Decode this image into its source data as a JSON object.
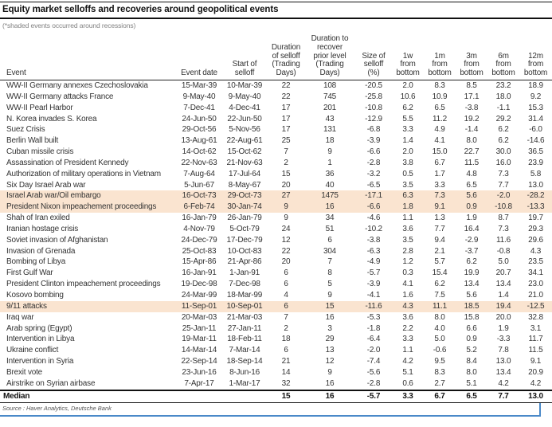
{
  "title": "Equity market selloffs and recoveries around geopolitical events",
  "subtitle": "(*shaded events occurred around recessions)",
  "source": "Source : Haver Analytics, Deutsche Bank",
  "colors": {
    "row_shade": "#fae4d0",
    "border_blue": "#4a89c8"
  },
  "chart_data": {
    "type": "table",
    "title": "Equity market selloffs and recoveries around geopolitical events",
    "note": "(*shaded events occurred around recessions)",
    "columns": [
      "Event",
      "Event date",
      "Start of selloff",
      "Duration of selloff (Trading Days)",
      "Duration to recover prior level (Trading Days)",
      "Size of selloff (%)",
      "1w from bottom",
      "1m from bottom",
      "3m from bottom",
      "6m from bottom",
      "12m from bottom"
    ],
    "header_lines": [
      "Event",
      "Event date",
      "Start of\nselloff",
      "Duration\nof selloff\n(Trading\nDays)",
      "Duration to\nrecover\nprior level\n(Trading\nDays)",
      "Size of\nselloff\n(%)",
      "1w\nfrom\nbottom",
      "1m\nfrom\nbottom",
      "3m\nfrom\nbottom",
      "6m\nfrom\nbottom",
      "12m\nfrom\nbottom"
    ],
    "rows": [
      {
        "shaded": false,
        "cells": [
          "WW-II Germany annexes Czechoslovakia",
          "15-Mar-39",
          "10-Mar-39",
          "22",
          "108",
          "-20.5",
          "2.0",
          "8.3",
          "8.5",
          "23.2",
          "18.9"
        ]
      },
      {
        "shaded": false,
        "cells": [
          "WW-II Germany attacks France",
          "9-May-40",
          "9-May-40",
          "22",
          "745",
          "-25.8",
          "10.6",
          "10.9",
          "17.1",
          "18.0",
          "9.2"
        ]
      },
      {
        "shaded": false,
        "cells": [
          "WW-II Pearl Harbor",
          "7-Dec-41",
          "4-Dec-41",
          "17",
          "201",
          "-10.8",
          "6.2",
          "6.5",
          "-3.8",
          "-1.1",
          "15.3"
        ]
      },
      {
        "shaded": false,
        "cells": [
          "N. Korea invades S. Korea",
          "24-Jun-50",
          "22-Jun-50",
          "17",
          "43",
          "-12.9",
          "5.5",
          "11.2",
          "19.2",
          "29.2",
          "31.4"
        ]
      },
      {
        "shaded": false,
        "cells": [
          "Suez Crisis",
          "29-Oct-56",
          "5-Nov-56",
          "17",
          "131",
          "-6.8",
          "3.3",
          "4.9",
          "-1.4",
          "6.2",
          "-6.0"
        ]
      },
      {
        "shaded": false,
        "cells": [
          "Berlin Wall built",
          "13-Aug-61",
          "22-Aug-61",
          "25",
          "18",
          "-3.9",
          "1.4",
          "4.1",
          "8.0",
          "6.2",
          "-14.6"
        ]
      },
      {
        "shaded": false,
        "cells": [
          "Cuban missile crisis",
          "14-Oct-62",
          "15-Oct-62",
          "7",
          "9",
          "-6.6",
          "2.0",
          "15.0",
          "22.7",
          "30.0",
          "36.5"
        ]
      },
      {
        "shaded": false,
        "cells": [
          "Assassination of President Kennedy",
          "22-Nov-63",
          "21-Nov-63",
          "2",
          "1",
          "-2.8",
          "3.8",
          "6.7",
          "11.5",
          "16.0",
          "23.9"
        ]
      },
      {
        "shaded": false,
        "cells": [
          "Authorization of military operations in Vietnam",
          "7-Aug-64",
          "17-Jul-64",
          "15",
          "36",
          "-3.2",
          "0.5",
          "1.7",
          "4.8",
          "7.3",
          "5.8"
        ]
      },
      {
        "shaded": false,
        "cells": [
          "Six Day Israel Arab war",
          "5-Jun-67",
          "8-May-67",
          "20",
          "40",
          "-6.5",
          "3.5",
          "3.3",
          "6.5",
          "7.7",
          "13.0"
        ]
      },
      {
        "shaded": true,
        "cells": [
          "Israel Arab war/Oil embargo",
          "16-Oct-73",
          "29-Oct-73",
          "27",
          "1475",
          "-17.1",
          "6.3",
          "7.3",
          "5.6",
          "-2.0",
          "-28.2"
        ]
      },
      {
        "shaded": true,
        "cells": [
          "President Nixon impeachement proceedings",
          "6-Feb-74",
          "30-Jan-74",
          "9",
          "16",
          "-6.6",
          "1.8",
          "9.1",
          "0.9",
          "-10.8",
          "-13.3"
        ]
      },
      {
        "shaded": false,
        "cells": [
          "Shah of Iran exiled",
          "16-Jan-79",
          "26-Jan-79",
          "9",
          "34",
          "-4.6",
          "1.1",
          "1.3",
          "1.9",
          "8.7",
          "19.7"
        ]
      },
      {
        "shaded": false,
        "cells": [
          "Iranian hostage crisis",
          "4-Nov-79",
          "5-Oct-79",
          "24",
          "51",
          "-10.2",
          "3.6",
          "7.7",
          "16.4",
          "7.3",
          "29.3"
        ]
      },
      {
        "shaded": false,
        "cells": [
          "Soviet invasion of Afghanistan",
          "24-Dec-79",
          "17-Dec-79",
          "12",
          "6",
          "-3.8",
          "3.5",
          "9.4",
          "-2.9",
          "11.6",
          "29.6"
        ]
      },
      {
        "shaded": false,
        "cells": [
          "Invasion of Grenada",
          "25-Oct-83",
          "10-Oct-83",
          "22",
          "304",
          "-6.3",
          "2.8",
          "2.1",
          "-3.7",
          "-0.8",
          "4.3"
        ]
      },
      {
        "shaded": false,
        "cells": [
          "Bombing of Libya",
          "15-Apr-86",
          "21-Apr-86",
          "20",
          "7",
          "-4.9",
          "1.2",
          "5.7",
          "6.2",
          "5.0",
          "23.5"
        ]
      },
      {
        "shaded": false,
        "cells": [
          "First Gulf War",
          "16-Jan-91",
          "1-Jan-91",
          "6",
          "8",
          "-5.7",
          "0.3",
          "15.4",
          "19.9",
          "20.7",
          "34.1"
        ]
      },
      {
        "shaded": false,
        "cells": [
          "President Clinton impeachement proceedings",
          "19-Dec-98",
          "7-Dec-98",
          "6",
          "5",
          "-3.9",
          "4.1",
          "6.2",
          "13.4",
          "13.4",
          "23.0"
        ]
      },
      {
        "shaded": false,
        "cells": [
          "Kosovo bombing",
          "24-Mar-99",
          "18-Mar-99",
          "4",
          "9",
          "-4.1",
          "1.6",
          "7.5",
          "5.6",
          "1.4",
          "21.0"
        ]
      },
      {
        "shaded": true,
        "cells": [
          "9/11 attacks",
          "11-Sep-01",
          "10-Sep-01",
          "6",
          "15",
          "-11.6",
          "4.3",
          "11.1",
          "18.5",
          "19.4",
          "-12.5"
        ]
      },
      {
        "shaded": false,
        "cells": [
          "Iraq war",
          "20-Mar-03",
          "21-Mar-03",
          "7",
          "16",
          "-5.3",
          "3.6",
          "8.0",
          "15.8",
          "20.0",
          "32.8"
        ]
      },
      {
        "shaded": false,
        "cells": [
          "Arab spring (Egypt)",
          "25-Jan-11",
          "27-Jan-11",
          "2",
          "3",
          "-1.8",
          "2.2",
          "4.0",
          "6.6",
          "1.9",
          "3.1"
        ]
      },
      {
        "shaded": false,
        "cells": [
          "Intervention in Libya",
          "19-Mar-11",
          "18-Feb-11",
          "18",
          "29",
          "-6.4",
          "3.3",
          "5.0",
          "0.9",
          "-3.3",
          "11.7"
        ]
      },
      {
        "shaded": false,
        "cells": [
          "Ukraine conflict",
          "14-Mar-14",
          "7-Mar-14",
          "6",
          "13",
          "-2.0",
          "1.1",
          "-0.6",
          "5.2",
          "7.8",
          "11.5"
        ]
      },
      {
        "shaded": false,
        "cells": [
          "Intervention in Syria",
          "22-Sep-14",
          "18-Sep-14",
          "21",
          "12",
          "-7.4",
          "4.2",
          "9.5",
          "8.4",
          "13.0",
          "9.1"
        ]
      },
      {
        "shaded": false,
        "cells": [
          "Brexit vote",
          "23-Jun-16",
          "8-Jun-16",
          "14",
          "9",
          "-5.6",
          "5.1",
          "8.3",
          "8.0",
          "13.4",
          "20.9"
        ]
      },
      {
        "shaded": false,
        "cells": [
          "Airstrike on Syrian airbase",
          "7-Apr-17",
          "1-Mar-17",
          "32",
          "16",
          "-2.8",
          "0.6",
          "2.7",
          "5.1",
          "4.2",
          "4.2"
        ]
      }
    ],
    "median": {
      "cells": [
        "Median",
        "",
        "",
        "15",
        "16",
        "-5.7",
        "3.3",
        "6.7",
        "6.5",
        "7.7",
        "13.0"
      ]
    }
  }
}
